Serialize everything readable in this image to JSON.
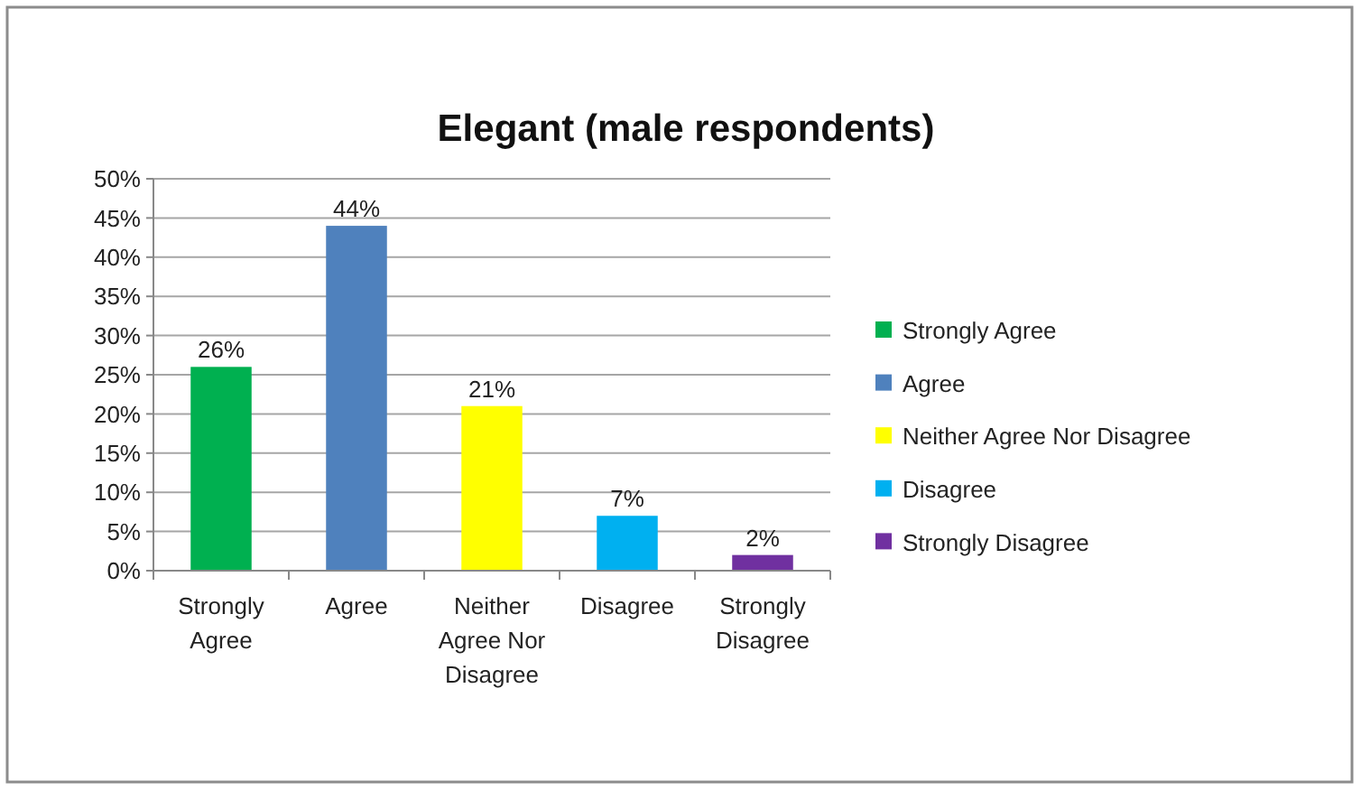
{
  "chart_data": {
    "type": "bar",
    "title": "Elegant (male respondents)",
    "categories": [
      "Strongly Agree",
      "Agree",
      "Neither Agree Nor Disagree",
      "Disagree",
      "Strongly Disagree"
    ],
    "stacked": true,
    "series": [
      {
        "name": "Strongly Agree",
        "color": "#00b050",
        "values": [
          26,
          null,
          null,
          null,
          null
        ],
        "value_labels": [
          "26%",
          null,
          null,
          null,
          null
        ]
      },
      {
        "name": "Agree",
        "color": "#4f81bd",
        "values": [
          null,
          44,
          null,
          null,
          null
        ],
        "value_labels": [
          null,
          "44%",
          null,
          null,
          null
        ]
      },
      {
        "name": "Neither Agree Nor Disagree",
        "color": "#ffff00",
        "values": [
          null,
          null,
          21,
          null,
          null
        ],
        "value_labels": [
          null,
          null,
          "21%",
          null,
          null
        ]
      },
      {
        "name": "Disagree",
        "color": "#00b0f0",
        "values": [
          null,
          null,
          null,
          7,
          null
        ],
        "value_labels": [
          null,
          null,
          null,
          "7%",
          null
        ]
      },
      {
        "name": "Strongly Disagree",
        "color": "#7030a0",
        "values": [
          null,
          null,
          null,
          null,
          2
        ],
        "value_labels": [
          null,
          null,
          null,
          null,
          "2%"
        ]
      }
    ],
    "ylim": [
      0,
      50
    ],
    "yticks": [
      {
        "value": 0,
        "label": "0%"
      },
      {
        "value": 5,
        "label": "5%"
      },
      {
        "value": 10,
        "label": "10%"
      },
      {
        "value": 15,
        "label": "15%"
      },
      {
        "value": 20,
        "label": "20%"
      },
      {
        "value": 25,
        "label": "25%"
      },
      {
        "value": 30,
        "label": "30%"
      },
      {
        "value": 35,
        "label": "35%"
      },
      {
        "value": 40,
        "label": "40%"
      },
      {
        "value": 45,
        "label": "45%"
      },
      {
        "value": 50,
        "label": "50%"
      }
    ],
    "grid": "y",
    "legend": "right"
  }
}
